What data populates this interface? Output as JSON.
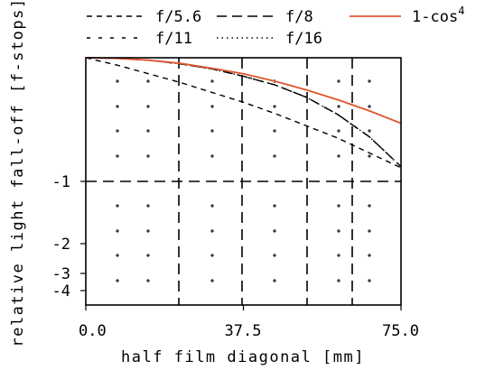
{
  "chart_data": {
    "type": "line",
    "title": "",
    "xlabel": "half film diagonal [mm]",
    "ylabel": "relative light fall-off [f-stops]",
    "xlim": [
      0,
      75
    ],
    "x_ticks": [
      "0.0",
      "37.5",
      "75.0"
    ],
    "x_tick_values": [
      0,
      37.5,
      75
    ],
    "y_ticks": [
      "-1",
      "-2",
      "-3",
      "-4"
    ],
    "y_tick_values": [
      -1,
      -2,
      -3,
      -4
    ],
    "grid": true,
    "legend_position": "top",
    "series": [
      {
        "name": "f/5.6",
        "style": "dashed-short",
        "color": "#000000",
        "x": [
          0,
          7.5,
          15,
          22.5,
          30,
          37.5,
          45,
          52.5,
          60,
          67.5,
          75
        ],
        "y": [
          0,
          -0.06,
          -0.13,
          -0.2,
          -0.28,
          -0.36,
          -0.45,
          -0.55,
          -0.65,
          -0.77,
          -0.89
        ]
      },
      {
        "name": "f/8",
        "style": "dashed-long",
        "color": "#000000",
        "x": [
          0,
          7.5,
          15,
          22.5,
          30,
          37.5,
          45,
          52.5,
          60,
          67.5,
          75
        ],
        "y": [
          0,
          -0.005,
          -0.02,
          -0.05,
          -0.09,
          -0.15,
          -0.22,
          -0.32,
          -0.46,
          -0.64,
          -0.88
        ]
      },
      {
        "name": "f/11",
        "style": "dashed-sparse",
        "color": "#000000",
        "x": [
          0,
          7.5,
          15,
          22.5,
          30,
          37.5,
          45,
          52.5,
          60,
          67.5,
          75
        ],
        "y": [
          0,
          -0.005,
          -0.02,
          -0.05,
          -0.09,
          -0.15,
          -0.22,
          -0.32,
          -0.46,
          -0.64,
          -0.88
        ]
      },
      {
        "name": "f/16",
        "style": "dotted",
        "color": "#000000",
        "x": [
          0,
          7.5,
          15,
          22.5,
          30,
          37.5,
          45,
          52.5,
          60,
          67.5,
          75
        ],
        "y": [
          0,
          -0.005,
          -0.02,
          -0.05,
          -0.09,
          -0.15,
          -0.22,
          -0.32,
          -0.46,
          -0.64,
          -0.88
        ]
      },
      {
        "name": "1-cos",
        "name_superscript": "4",
        "style": "solid",
        "color": "#e0562e",
        "x": [
          0,
          7.5,
          15,
          22.5,
          30,
          37.5,
          45,
          52.5,
          60,
          67.5,
          75
        ],
        "y": [
          0,
          -0.005,
          -0.02,
          -0.045,
          -0.085,
          -0.13,
          -0.19,
          -0.26,
          -0.34,
          -0.43,
          -0.53
        ]
      }
    ]
  }
}
